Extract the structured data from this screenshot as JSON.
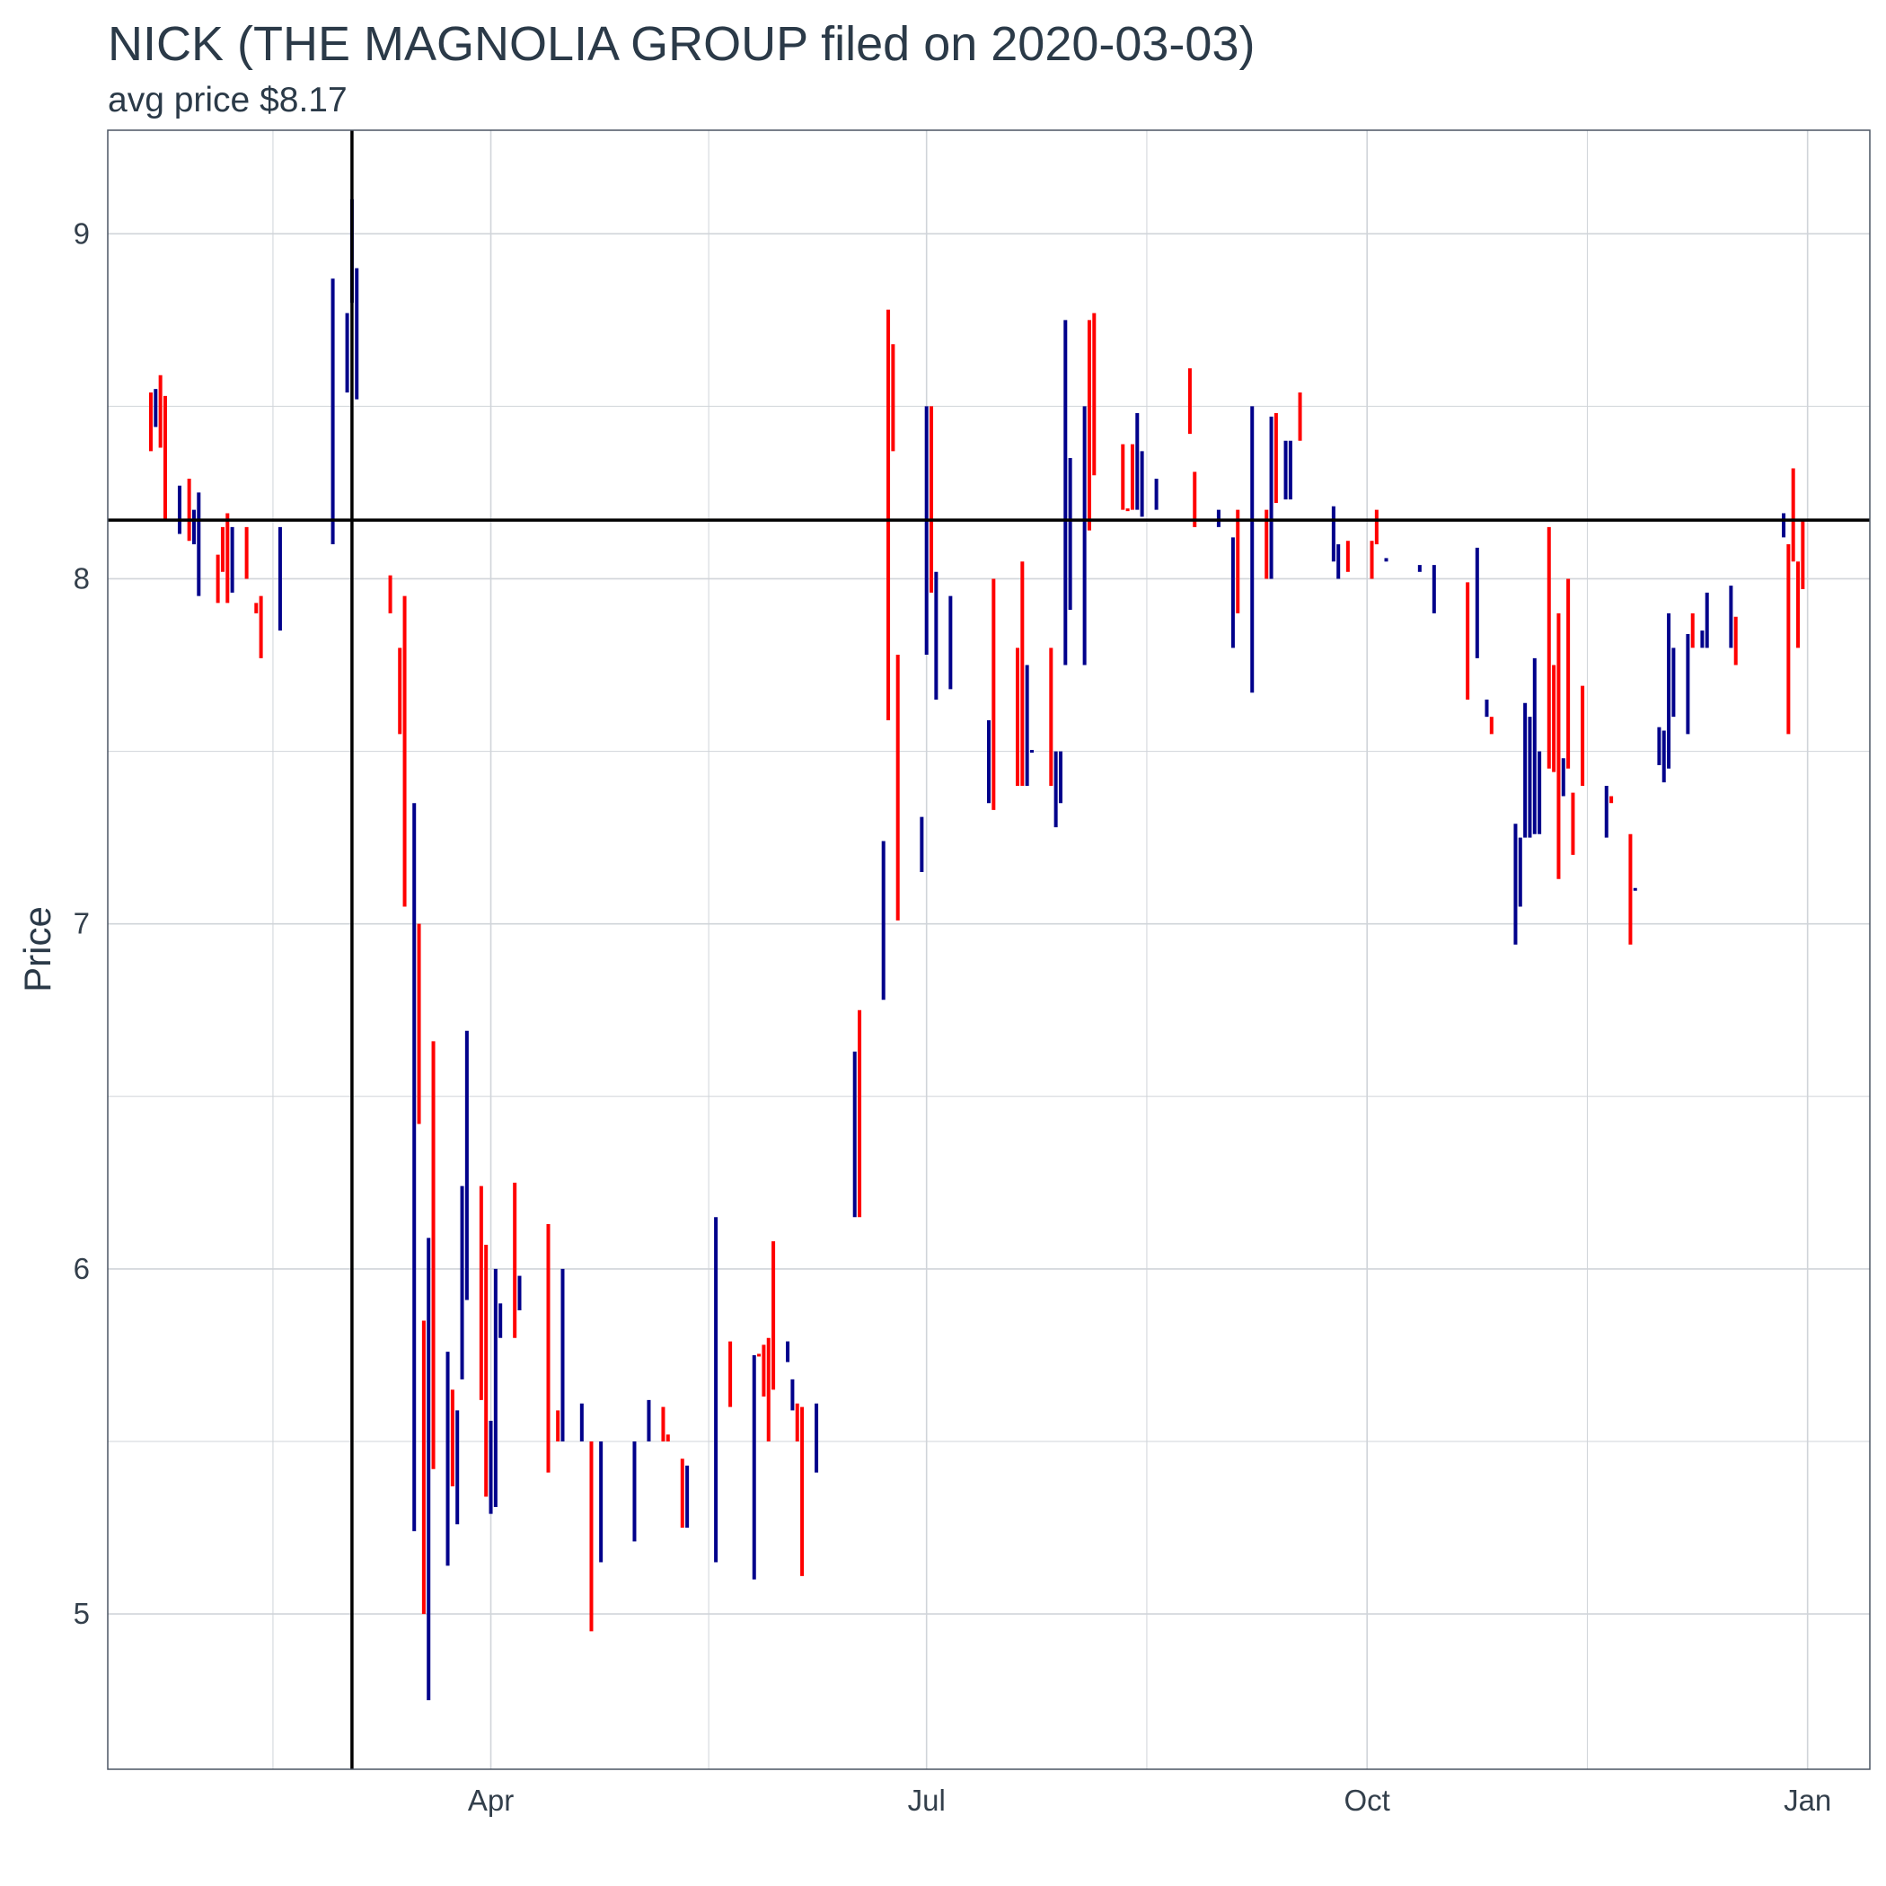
{
  "chart_data": {
    "type": "ohlc",
    "title": "NICK (THE MAGNOLIA GROUP filed on 2020-03-03)",
    "subtitle": "avg price $8.17",
    "ylabel": "Price",
    "ylim": [
      4.55,
      9.3
    ],
    "xlim": [
      "2020-01-12",
      "2021-01-14"
    ],
    "x_ticks": [
      {
        "label": "Apr",
        "date": "2020-04-01"
      },
      {
        "label": "Jul",
        "date": "2020-07-01"
      },
      {
        "label": "Oct",
        "date": "2020-10-01"
      },
      {
        "label": "Jan",
        "date": "2021-01-01"
      }
    ],
    "y_ticks": [
      5,
      6,
      7,
      8,
      9
    ],
    "reference_lines": {
      "avg_price": 8.17,
      "filing_date": "2020-03-03"
    },
    "grid": true,
    "colors": {
      "up": "#00008B",
      "down": "#FF0000",
      "reference": "#000000",
      "grid": "#d0d4d9",
      "border": "#4b5563"
    },
    "bars": [
      {
        "date": "2020-01-21",
        "low": 8.37,
        "high": 8.54,
        "dir": "down"
      },
      {
        "date": "2020-01-22",
        "low": 8.44,
        "high": 8.55,
        "dir": "up"
      },
      {
        "date": "2020-01-23",
        "low": 8.38,
        "high": 8.59,
        "dir": "down"
      },
      {
        "date": "2020-01-24",
        "low": 8.17,
        "high": 8.53,
        "dir": "down"
      },
      {
        "date": "2020-01-27",
        "low": 8.13,
        "high": 8.27,
        "dir": "up"
      },
      {
        "date": "2020-01-29",
        "low": 8.11,
        "high": 8.29,
        "dir": "down"
      },
      {
        "date": "2020-01-30",
        "low": 8.1,
        "high": 8.2,
        "dir": "up"
      },
      {
        "date": "2020-01-31",
        "low": 7.95,
        "high": 8.25,
        "dir": "up"
      },
      {
        "date": "2020-02-04",
        "low": 7.93,
        "high": 8.07,
        "dir": "down"
      },
      {
        "date": "2020-02-05",
        "low": 8.02,
        "high": 8.15,
        "dir": "down"
      },
      {
        "date": "2020-02-06",
        "low": 7.93,
        "high": 8.19,
        "dir": "down"
      },
      {
        "date": "2020-02-07",
        "low": 7.96,
        "high": 8.15,
        "dir": "up"
      },
      {
        "date": "2020-02-10",
        "low": 8.0,
        "high": 8.15,
        "dir": "down"
      },
      {
        "date": "2020-02-12",
        "low": 7.9,
        "high": 7.93,
        "dir": "down"
      },
      {
        "date": "2020-02-13",
        "low": 7.77,
        "high": 7.95,
        "dir": "down"
      },
      {
        "date": "2020-02-17",
        "low": 7.85,
        "high": 8.15,
        "dir": "up"
      },
      {
        "date": "2020-02-28",
        "low": 8.1,
        "high": 8.87,
        "dir": "up"
      },
      {
        "date": "2020-03-02",
        "low": 8.54,
        "high": 8.77,
        "dir": "up"
      },
      {
        "date": "2020-03-03",
        "low": 8.8,
        "high": 9.1,
        "dir": "up"
      },
      {
        "date": "2020-03-04",
        "low": 8.52,
        "high": 8.9,
        "dir": "up"
      },
      {
        "date": "2020-03-11",
        "low": 7.9,
        "high": 8.01,
        "dir": "down"
      },
      {
        "date": "2020-03-13",
        "low": 7.55,
        "high": 7.8,
        "dir": "down"
      },
      {
        "date": "2020-03-14",
        "low": 7.05,
        "high": 7.95,
        "dir": "down"
      },
      {
        "date": "2020-03-16",
        "low": 5.24,
        "high": 7.35,
        "dir": "up"
      },
      {
        "date": "2020-03-17",
        "low": 6.42,
        "high": 7.0,
        "dir": "down"
      },
      {
        "date": "2020-03-18",
        "low": 5.0,
        "high": 5.85,
        "dir": "down"
      },
      {
        "date": "2020-03-19",
        "low": 4.75,
        "high": 6.09,
        "dir": "up"
      },
      {
        "date": "2020-03-20",
        "low": 5.42,
        "high": 6.66,
        "dir": "down"
      },
      {
        "date": "2020-03-23",
        "low": 5.14,
        "high": 5.76,
        "dir": "up"
      },
      {
        "date": "2020-03-24",
        "low": 5.37,
        "high": 5.65,
        "dir": "down"
      },
      {
        "date": "2020-03-25",
        "low": 5.26,
        "high": 5.59,
        "dir": "up"
      },
      {
        "date": "2020-03-26",
        "low": 5.68,
        "high": 6.24,
        "dir": "up"
      },
      {
        "date": "2020-03-27",
        "low": 5.91,
        "high": 6.69,
        "dir": "up"
      },
      {
        "date": "2020-03-30",
        "low": 5.62,
        "high": 6.24,
        "dir": "down"
      },
      {
        "date": "2020-03-31",
        "low": 5.34,
        "high": 6.07,
        "dir": "down"
      },
      {
        "date": "2020-04-01",
        "low": 5.29,
        "high": 5.56,
        "dir": "up"
      },
      {
        "date": "2020-04-02",
        "low": 5.31,
        "high": 6.0,
        "dir": "up"
      },
      {
        "date": "2020-04-03",
        "low": 5.8,
        "high": 5.9,
        "dir": "up"
      },
      {
        "date": "2020-04-06",
        "low": 5.8,
        "high": 6.25,
        "dir": "down"
      },
      {
        "date": "2020-04-07",
        "low": 5.88,
        "high": 5.98,
        "dir": "up"
      },
      {
        "date": "2020-04-13",
        "low": 5.41,
        "high": 6.13,
        "dir": "down"
      },
      {
        "date": "2020-04-15",
        "low": 5.5,
        "high": 5.59,
        "dir": "down"
      },
      {
        "date": "2020-04-16",
        "low": 5.5,
        "high": 6.0,
        "dir": "up"
      },
      {
        "date": "2020-04-20",
        "low": 5.5,
        "high": 5.61,
        "dir": "up"
      },
      {
        "date": "2020-04-22",
        "low": 4.95,
        "high": 5.5,
        "dir": "down"
      },
      {
        "date": "2020-04-24",
        "low": 5.15,
        "high": 5.5,
        "dir": "up"
      },
      {
        "date": "2020-05-01",
        "low": 5.21,
        "high": 5.5,
        "dir": "up"
      },
      {
        "date": "2020-05-04",
        "low": 5.5,
        "high": 5.62,
        "dir": "up"
      },
      {
        "date": "2020-05-07",
        "low": 5.5,
        "high": 5.6,
        "dir": "down"
      },
      {
        "date": "2020-05-08",
        "low": 5.5,
        "high": 5.52,
        "dir": "down"
      },
      {
        "date": "2020-05-11",
        "low": 5.25,
        "high": 5.45,
        "dir": "down"
      },
      {
        "date": "2020-05-12",
        "low": 5.25,
        "high": 5.43,
        "dir": "up"
      },
      {
        "date": "2020-05-18",
        "low": 5.15,
        "high": 6.15,
        "dir": "up"
      },
      {
        "date": "2020-05-21",
        "low": 5.6,
        "high": 5.79,
        "dir": "down"
      },
      {
        "date": "2020-05-26",
        "low": 5.1,
        "high": 5.75,
        "dir": "up"
      },
      {
        "date": "2020-05-27",
        "low": 5.75,
        "high": 5.75,
        "dir": "down"
      },
      {
        "date": "2020-05-28",
        "low": 5.63,
        "high": 5.78,
        "dir": "down"
      },
      {
        "date": "2020-05-29",
        "low": 5.5,
        "high": 5.8,
        "dir": "down"
      },
      {
        "date": "2020-05-30",
        "low": 5.65,
        "high": 6.08,
        "dir": "down"
      },
      {
        "date": "2020-06-02",
        "low": 5.73,
        "high": 5.79,
        "dir": "up"
      },
      {
        "date": "2020-06-03",
        "low": 5.59,
        "high": 5.68,
        "dir": "up"
      },
      {
        "date": "2020-06-04",
        "low": 5.5,
        "high": 5.61,
        "dir": "down"
      },
      {
        "date": "2020-06-05",
        "low": 5.11,
        "high": 5.6,
        "dir": "down"
      },
      {
        "date": "2020-06-08",
        "low": 5.41,
        "high": 5.61,
        "dir": "up"
      },
      {
        "date": "2020-06-16",
        "low": 6.15,
        "high": 6.63,
        "dir": "up"
      },
      {
        "date": "2020-06-17",
        "low": 6.15,
        "high": 6.75,
        "dir": "down"
      },
      {
        "date": "2020-06-22",
        "low": 6.78,
        "high": 7.24,
        "dir": "up"
      },
      {
        "date": "2020-06-23",
        "low": 7.59,
        "high": 8.78,
        "dir": "down"
      },
      {
        "date": "2020-06-24",
        "low": 8.37,
        "high": 8.68,
        "dir": "down"
      },
      {
        "date": "2020-06-25",
        "low": 7.01,
        "high": 7.78,
        "dir": "down"
      },
      {
        "date": "2020-06-30",
        "low": 7.15,
        "high": 7.31,
        "dir": "up"
      },
      {
        "date": "2020-07-01",
        "low": 7.78,
        "high": 8.5,
        "dir": "up"
      },
      {
        "date": "2020-07-02",
        "low": 7.96,
        "high": 8.5,
        "dir": "down"
      },
      {
        "date": "2020-07-03",
        "low": 7.65,
        "high": 8.02,
        "dir": "up"
      },
      {
        "date": "2020-07-06",
        "low": 7.68,
        "high": 7.95,
        "dir": "up"
      },
      {
        "date": "2020-07-14",
        "low": 7.35,
        "high": 7.59,
        "dir": "up"
      },
      {
        "date": "2020-07-15",
        "low": 7.33,
        "high": 8.0,
        "dir": "down"
      },
      {
        "date": "2020-07-20",
        "low": 7.4,
        "high": 7.8,
        "dir": "down"
      },
      {
        "date": "2020-07-21",
        "low": 7.4,
        "high": 8.05,
        "dir": "down"
      },
      {
        "date": "2020-07-22",
        "low": 7.4,
        "high": 7.75,
        "dir": "up"
      },
      {
        "date": "2020-07-23",
        "low": 7.5,
        "high": 7.5,
        "dir": "up"
      },
      {
        "date": "2020-07-27",
        "low": 7.4,
        "high": 7.8,
        "dir": "down"
      },
      {
        "date": "2020-07-28",
        "low": 7.28,
        "high": 7.5,
        "dir": "up"
      },
      {
        "date": "2020-07-29",
        "low": 7.35,
        "high": 7.5,
        "dir": "up"
      },
      {
        "date": "2020-07-30",
        "low": 7.75,
        "high": 8.75,
        "dir": "up"
      },
      {
        "date": "2020-07-31",
        "low": 7.91,
        "high": 8.35,
        "dir": "up"
      },
      {
        "date": "2020-08-03",
        "low": 7.75,
        "high": 8.5,
        "dir": "up"
      },
      {
        "date": "2020-08-04",
        "low": 8.14,
        "high": 8.75,
        "dir": "down"
      },
      {
        "date": "2020-08-05",
        "low": 8.3,
        "high": 8.77,
        "dir": "down"
      },
      {
        "date": "2020-08-11",
        "low": 8.2,
        "high": 8.39,
        "dir": "down"
      },
      {
        "date": "2020-08-12",
        "low": 8.2,
        "high": 8.2,
        "dir": "down"
      },
      {
        "date": "2020-08-13",
        "low": 8.2,
        "high": 8.39,
        "dir": "down"
      },
      {
        "date": "2020-08-14",
        "low": 8.2,
        "high": 8.48,
        "dir": "up"
      },
      {
        "date": "2020-08-15",
        "low": 8.18,
        "high": 8.37,
        "dir": "up"
      },
      {
        "date": "2020-08-18",
        "low": 8.2,
        "high": 8.29,
        "dir": "up"
      },
      {
        "date": "2020-08-25",
        "low": 8.42,
        "high": 8.61,
        "dir": "down"
      },
      {
        "date": "2020-08-26",
        "low": 8.15,
        "high": 8.31,
        "dir": "down"
      },
      {
        "date": "2020-08-31",
        "low": 8.15,
        "high": 8.2,
        "dir": "up"
      },
      {
        "date": "2020-09-03",
        "low": 7.8,
        "high": 8.12,
        "dir": "up"
      },
      {
        "date": "2020-09-04",
        "low": 7.9,
        "high": 8.2,
        "dir": "down"
      },
      {
        "date": "2020-09-07",
        "low": 7.67,
        "high": 8.5,
        "dir": "up"
      },
      {
        "date": "2020-09-10",
        "low": 8.0,
        "high": 8.2,
        "dir": "down"
      },
      {
        "date": "2020-09-11",
        "low": 8.0,
        "high": 8.47,
        "dir": "up"
      },
      {
        "date": "2020-09-12",
        "low": 8.22,
        "high": 8.48,
        "dir": "down"
      },
      {
        "date": "2020-09-14",
        "low": 8.23,
        "high": 8.4,
        "dir": "up"
      },
      {
        "date": "2020-09-15",
        "low": 8.23,
        "high": 8.4,
        "dir": "up"
      },
      {
        "date": "2020-09-17",
        "low": 8.4,
        "high": 8.54,
        "dir": "down"
      },
      {
        "date": "2020-09-24",
        "low": 8.05,
        "high": 8.21,
        "dir": "up"
      },
      {
        "date": "2020-09-25",
        "low": 8.0,
        "high": 8.1,
        "dir": "up"
      },
      {
        "date": "2020-09-27",
        "low": 8.02,
        "high": 8.11,
        "dir": "down"
      },
      {
        "date": "2020-10-02",
        "low": 8.0,
        "high": 8.11,
        "dir": "down"
      },
      {
        "date": "2020-10-03",
        "low": 8.1,
        "high": 8.2,
        "dir": "down"
      },
      {
        "date": "2020-10-05",
        "low": 8.05,
        "high": 8.06,
        "dir": "up"
      },
      {
        "date": "2020-10-12",
        "low": 8.02,
        "high": 8.04,
        "dir": "up"
      },
      {
        "date": "2020-10-15",
        "low": 7.9,
        "high": 8.04,
        "dir": "up"
      },
      {
        "date": "2020-10-22",
        "low": 7.65,
        "high": 7.99,
        "dir": "down"
      },
      {
        "date": "2020-10-24",
        "low": 7.77,
        "high": 8.09,
        "dir": "up"
      },
      {
        "date": "2020-10-26",
        "low": 7.6,
        "high": 7.65,
        "dir": "up"
      },
      {
        "date": "2020-10-27",
        "low": 7.55,
        "high": 7.6,
        "dir": "down"
      },
      {
        "date": "2020-11-01",
        "low": 6.94,
        "high": 7.29,
        "dir": "up"
      },
      {
        "date": "2020-11-02",
        "low": 7.05,
        "high": 7.25,
        "dir": "up"
      },
      {
        "date": "2020-11-03",
        "low": 7.25,
        "high": 7.64,
        "dir": "up"
      },
      {
        "date": "2020-11-04",
        "low": 7.25,
        "high": 7.6,
        "dir": "up"
      },
      {
        "date": "2020-11-05",
        "low": 7.26,
        "high": 7.77,
        "dir": "up"
      },
      {
        "date": "2020-11-06",
        "low": 7.26,
        "high": 7.5,
        "dir": "up"
      },
      {
        "date": "2020-11-08",
        "low": 7.45,
        "high": 8.15,
        "dir": "down"
      },
      {
        "date": "2020-11-09",
        "low": 7.44,
        "high": 7.75,
        "dir": "down"
      },
      {
        "date": "2020-11-10",
        "low": 7.13,
        "high": 7.9,
        "dir": "down"
      },
      {
        "date": "2020-11-11",
        "low": 7.37,
        "high": 7.48,
        "dir": "up"
      },
      {
        "date": "2020-11-12",
        "low": 7.45,
        "high": 8.0,
        "dir": "down"
      },
      {
        "date": "2020-11-13",
        "low": 7.2,
        "high": 7.38,
        "dir": "down"
      },
      {
        "date": "2020-11-15",
        "low": 7.4,
        "high": 7.69,
        "dir": "down"
      },
      {
        "date": "2020-11-20",
        "low": 7.25,
        "high": 7.4,
        "dir": "up"
      },
      {
        "date": "2020-11-21",
        "low": 7.35,
        "high": 7.37,
        "dir": "down"
      },
      {
        "date": "2020-11-25",
        "low": 6.94,
        "high": 7.26,
        "dir": "down"
      },
      {
        "date": "2020-11-26",
        "low": 7.1,
        "high": 7.1,
        "dir": "up"
      },
      {
        "date": "2020-12-01",
        "low": 7.46,
        "high": 7.57,
        "dir": "up"
      },
      {
        "date": "2020-12-02",
        "low": 7.41,
        "high": 7.56,
        "dir": "up"
      },
      {
        "date": "2020-12-03",
        "low": 7.45,
        "high": 7.9,
        "dir": "up"
      },
      {
        "date": "2020-12-04",
        "low": 7.6,
        "high": 7.8,
        "dir": "up"
      },
      {
        "date": "2020-12-07",
        "low": 7.55,
        "high": 7.84,
        "dir": "up"
      },
      {
        "date": "2020-12-08",
        "low": 7.8,
        "high": 7.9,
        "dir": "down"
      },
      {
        "date": "2020-12-10",
        "low": 7.8,
        "high": 7.85,
        "dir": "up"
      },
      {
        "date": "2020-12-11",
        "low": 7.8,
        "high": 7.96,
        "dir": "up"
      },
      {
        "date": "2020-12-16",
        "low": 7.8,
        "high": 7.98,
        "dir": "up"
      },
      {
        "date": "2020-12-17",
        "low": 7.75,
        "high": 7.89,
        "dir": "down"
      },
      {
        "date": "2020-12-27",
        "low": 8.12,
        "high": 8.19,
        "dir": "up"
      },
      {
        "date": "2020-12-28",
        "low": 7.55,
        "high": 8.1,
        "dir": "down"
      },
      {
        "date": "2020-12-29",
        "low": 8.05,
        "high": 8.32,
        "dir": "down"
      },
      {
        "date": "2020-12-30",
        "low": 7.8,
        "high": 8.05,
        "dir": "down"
      },
      {
        "date": "2020-12-31",
        "low": 7.97,
        "high": 8.17,
        "dir": "down"
      }
    ]
  }
}
